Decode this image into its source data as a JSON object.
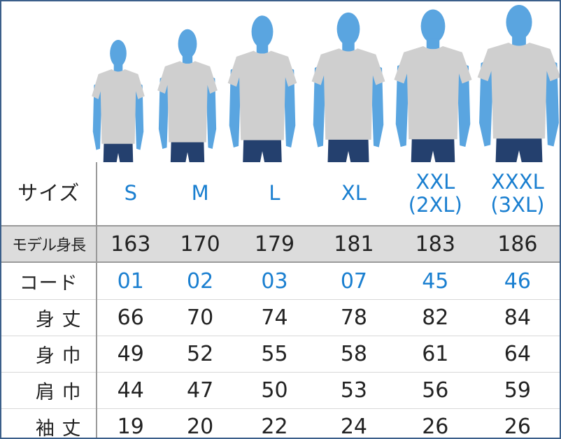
{
  "colors": {
    "accent": "#1a7fd0",
    "silhouette": "#5aa5e0",
    "shirt": "#cfcfcf",
    "jeans": "#24406e",
    "header_gray": "#dcdcdc",
    "border": "#3b5f8a"
  },
  "labels": {
    "size": "サイズ",
    "model_height": "モデル身長",
    "code": "コード",
    "length": "身 丈",
    "body_width": "身 巾",
    "shoulder": "肩 巾",
    "sleeve": "袖 丈"
  },
  "sizes": [
    {
      "name": "S",
      "sub": "",
      "model_height": 163,
      "code": "01",
      "length": 66,
      "body_width": 49,
      "shoulder": 44,
      "sleeve": 19
    },
    {
      "name": "M",
      "sub": "",
      "model_height": 170,
      "code": "02",
      "length": 70,
      "body_width": 52,
      "shoulder": 47,
      "sleeve": 20
    },
    {
      "name": "L",
      "sub": "",
      "model_height": 179,
      "code": "03",
      "length": 74,
      "body_width": 55,
      "shoulder": 50,
      "sleeve": 22
    },
    {
      "name": "XL",
      "sub": "",
      "model_height": 181,
      "code": "07",
      "length": 78,
      "body_width": 58,
      "shoulder": 53,
      "sleeve": 24
    },
    {
      "name": "XXL",
      "sub": "(2XL)",
      "model_height": 183,
      "code": "45",
      "length": 82,
      "body_width": 61,
      "shoulder": 56,
      "sleeve": 26
    },
    {
      "name": "XXXL",
      "sub": "(3XL)",
      "model_height": 186,
      "code": "46",
      "length": 84,
      "body_width": 64,
      "shoulder": 59,
      "sleeve": 26
    }
  ]
}
